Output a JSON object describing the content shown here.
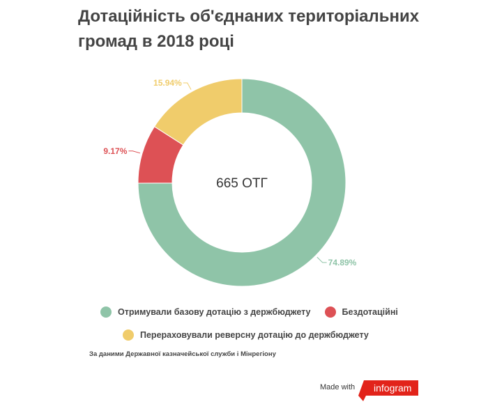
{
  "title": "Дотаційність об'єднаних територіальних громад в 2018 році",
  "chart_data": {
    "type": "pie",
    "variant": "donut",
    "center_label": "665 ОТГ",
    "slices": [
      {
        "name": "Отримували базову дотацію з держбюджету",
        "value": 74.89,
        "label": "74.89%",
        "color": "#8fc4a8"
      },
      {
        "name": "Бездотаційні",
        "value": 9.17,
        "label": "9.17%",
        "color": "#dd5155"
      },
      {
        "name": "Перераховували реверсну дотацію до держбюджету",
        "value": 15.94,
        "label": "15.94%",
        "color": "#f0cc6b"
      }
    ],
    "legend_position": "bottom"
  },
  "legend": [
    {
      "label": "Отримували базову дотацію з держбюджету",
      "color": "#8fc4a8"
    },
    {
      "label": "Бездотаційні",
      "color": "#dd5155"
    },
    {
      "label": "Перераховували реверсну дотацію до держбюджету",
      "color": "#f0cc6b"
    }
  ],
  "source": "За даними Державної казначейської служби і Мінрегіону",
  "footer": {
    "made_with": "Made with",
    "brand": "infogram",
    "brand_color": "#e2231a"
  }
}
